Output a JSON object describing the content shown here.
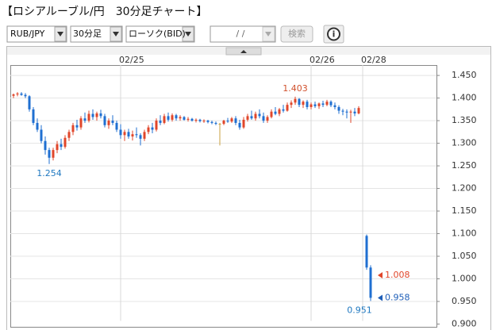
{
  "header": {
    "title": "【ロシアルーブル/円　30分足チャート】"
  },
  "controls": {
    "pair": "RUB/JPY",
    "interval": "30分足",
    "style": "ローソク(BID)",
    "date": "/ /",
    "search": "検索",
    "info": "i"
  },
  "chart_data": {
    "type": "candlestick",
    "up_color": "#e0462a",
    "down_color": "#1f6fd1",
    "flat_color": "#c8a040",
    "xlim": [
      -0.8,
      106.6
    ],
    "xticks": [
      {
        "value": 27,
        "label": "02/25"
      },
      {
        "value": 75,
        "label": "02/26"
      },
      {
        "value": 88,
        "label": "02/28"
      }
    ],
    "ylim": [
      0.907,
      1.473
    ],
    "yticks": [
      {
        "value": 0.9,
        "label": "0.900"
      },
      {
        "value": 0.95,
        "label": "0.950"
      },
      {
        "value": 1.0,
        "label": "1.000"
      },
      {
        "value": 1.05,
        "label": "1.050"
      },
      {
        "value": 1.1,
        "label": "1.100"
      },
      {
        "value": 1.15,
        "label": "1.150"
      },
      {
        "value": 1.2,
        "label": "1.200"
      },
      {
        "value": 1.25,
        "label": "1.250"
      },
      {
        "value": 1.3,
        "label": "1.300"
      },
      {
        "value": 1.35,
        "label": "1.350"
      },
      {
        "value": 1.4,
        "label": "1.400"
      },
      {
        "value": 1.45,
        "label": "1.450"
      }
    ],
    "grid": true,
    "candles": [
      [
        1.405,
        1.41,
        1.4,
        1.408
      ],
      [
        1.408,
        1.413,
        1.404,
        1.41
      ],
      [
        1.41,
        1.413,
        1.405,
        1.407
      ],
      [
        1.407,
        1.411,
        1.4,
        1.404
      ],
      [
        1.404,
        1.406,
        1.37,
        1.375
      ],
      [
        1.375,
        1.38,
        1.34,
        1.345
      ],
      [
        1.345,
        1.355,
        1.325,
        1.33
      ],
      [
        1.33,
        1.34,
        1.3,
        1.305
      ],
      [
        1.305,
        1.315,
        1.275,
        1.285
      ],
      [
        1.285,
        1.29,
        1.254,
        1.268
      ],
      [
        1.268,
        1.29,
        1.262,
        1.285
      ],
      [
        1.285,
        1.305,
        1.278,
        1.298
      ],
      [
        1.298,
        1.31,
        1.285,
        1.292
      ],
      [
        1.292,
        1.318,
        1.288,
        1.312
      ],
      [
        1.312,
        1.33,
        1.305,
        1.325
      ],
      [
        1.325,
        1.345,
        1.318,
        1.34
      ],
      [
        1.34,
        1.352,
        1.328,
        1.335
      ],
      [
        1.335,
        1.36,
        1.33,
        1.355
      ],
      [
        1.355,
        1.368,
        1.345,
        1.35
      ],
      [
        1.35,
        1.372,
        1.346,
        1.365
      ],
      [
        1.365,
        1.375,
        1.352,
        1.358
      ],
      [
        1.358,
        1.37,
        1.35,
        1.366
      ],
      [
        1.366,
        1.374,
        1.355,
        1.36
      ],
      [
        1.36,
        1.365,
        1.335,
        1.34
      ],
      [
        1.34,
        1.355,
        1.332,
        1.35
      ],
      [
        1.35,
        1.362,
        1.34,
        1.345
      ],
      [
        1.345,
        1.35,
        1.325,
        1.33
      ],
      [
        1.33,
        1.342,
        1.31,
        1.318
      ],
      [
        1.318,
        1.33,
        1.305,
        1.325
      ],
      [
        1.325,
        1.332,
        1.31,
        1.315
      ],
      [
        1.315,
        1.328,
        1.306,
        1.32
      ],
      [
        1.32,
        1.335,
        1.312,
        1.318
      ],
      [
        1.318,
        1.322,
        1.295,
        1.31
      ],
      [
        1.31,
        1.33,
        1.305,
        1.325
      ],
      [
        1.325,
        1.34,
        1.32,
        1.335
      ],
      [
        1.335,
        1.345,
        1.322,
        1.33
      ],
      [
        1.33,
        1.355,
        1.326,
        1.35
      ],
      [
        1.35,
        1.362,
        1.34,
        1.345
      ],
      [
        1.345,
        1.365,
        1.342,
        1.36
      ],
      [
        1.36,
        1.368,
        1.348,
        1.352
      ],
      [
        1.352,
        1.366,
        1.348,
        1.362
      ],
      [
        1.362,
        1.365,
        1.35,
        1.355
      ],
      [
        1.355,
        1.362,
        1.35,
        1.358
      ],
      [
        1.358,
        1.36,
        1.35,
        1.352
      ],
      [
        1.352,
        1.358,
        1.348,
        1.354
      ],
      [
        1.354,
        1.356,
        1.348,
        1.35
      ],
      [
        1.35,
        1.355,
        1.346,
        1.352
      ],
      [
        1.352,
        1.354,
        1.346,
        1.349
      ],
      [
        1.349,
        1.353,
        1.345,
        1.35
      ],
      [
        1.35,
        1.352,
        1.344,
        1.347
      ],
      [
        1.347,
        1.35,
        1.342,
        1.345
      ],
      [
        1.345,
        1.348,
        1.34,
        1.343
      ],
      [
        1.343,
        1.345,
        1.295,
        1.343
      ],
      [
        1.343,
        1.352,
        1.34,
        1.35
      ],
      [
        1.35,
        1.356,
        1.345,
        1.348
      ],
      [
        1.348,
        1.358,
        1.345,
        1.355
      ],
      [
        1.355,
        1.36,
        1.34,
        1.345
      ],
      [
        1.345,
        1.352,
        1.33,
        1.335
      ],
      [
        1.335,
        1.358,
        1.332,
        1.352
      ],
      [
        1.352,
        1.365,
        1.348,
        1.36
      ],
      [
        1.36,
        1.372,
        1.352,
        1.355
      ],
      [
        1.355,
        1.37,
        1.35,
        1.365
      ],
      [
        1.365,
        1.375,
        1.355,
        1.36
      ],
      [
        1.36,
        1.368,
        1.345,
        1.35
      ],
      [
        1.35,
        1.362,
        1.345,
        1.358
      ],
      [
        1.358,
        1.375,
        1.355,
        1.37
      ],
      [
        1.37,
        1.38,
        1.362,
        1.365
      ],
      [
        1.365,
        1.378,
        1.36,
        1.375
      ],
      [
        1.375,
        1.385,
        1.368,
        1.372
      ],
      [
        1.372,
        1.39,
        1.37,
        1.385
      ],
      [
        1.385,
        1.395,
        1.378,
        1.39
      ],
      [
        1.39,
        1.403,
        1.385,
        1.398
      ],
      [
        1.398,
        1.4,
        1.38,
        1.385
      ],
      [
        1.385,
        1.395,
        1.378,
        1.392
      ],
      [
        1.392,
        1.396,
        1.375,
        1.38
      ],
      [
        1.38,
        1.39,
        1.375,
        1.386
      ],
      [
        1.386,
        1.392,
        1.378,
        1.382
      ],
      [
        1.382,
        1.39,
        1.376,
        1.388
      ],
      [
        1.388,
        1.394,
        1.38,
        1.385
      ],
      [
        1.385,
        1.396,
        1.382,
        1.392
      ],
      [
        1.392,
        1.395,
        1.38,
        1.384
      ],
      [
        1.384,
        1.39,
        1.375,
        1.38
      ],
      [
        1.38,
        1.384,
        1.365,
        1.372
      ],
      [
        1.372,
        1.376,
        1.362,
        1.37
      ],
      [
        1.37,
        1.375,
        1.355,
        1.368
      ],
      [
        1.368,
        1.374,
        1.345,
        1.37
      ],
      [
        1.37,
        1.378,
        1.36,
        1.366
      ],
      [
        1.366,
        1.382,
        1.364,
        1.378
      ],
      null,
      [
        1.095,
        1.098,
        1.02,
        1.025
      ],
      [
        1.025,
        1.03,
        0.951,
        0.958
      ]
    ],
    "extreme_labels": [
      {
        "candle": 71,
        "field": 1,
        "color": "#d0502c"
      },
      {
        "candle": 9,
        "field": 2,
        "color": "#1f78c0"
      },
      {
        "candle": 90,
        "field": 2,
        "color": "#1f78c0"
      }
    ],
    "price_markers": [
      {
        "value": 1.008,
        "color": "#e0462a"
      },
      {
        "value": 0.958,
        "color": "#1f5fb8"
      }
    ]
  }
}
